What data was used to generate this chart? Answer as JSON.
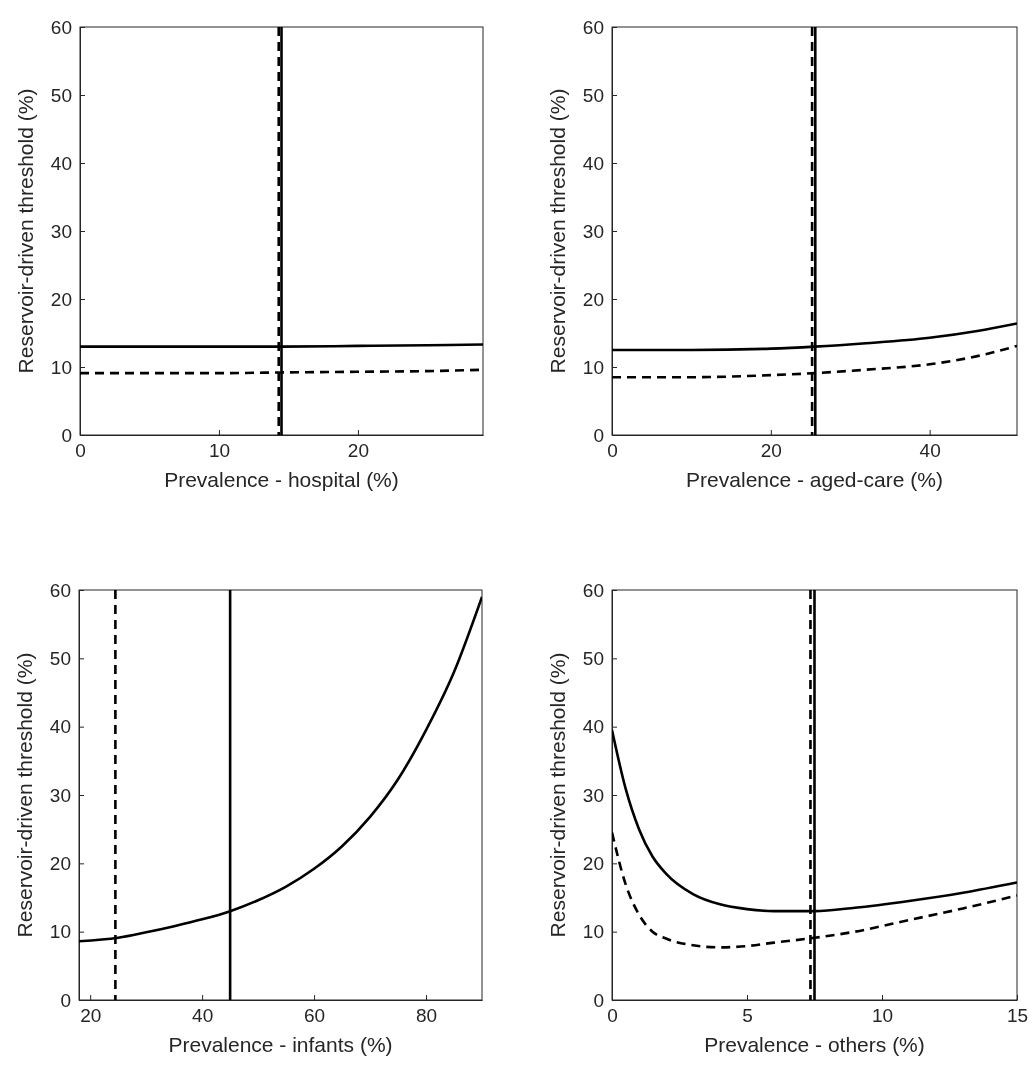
{
  "chart_data": [
    {
      "type": "line",
      "xlabel": "Prevalence - hospital (%)",
      "ylabel": "Reservoir-driven threshold (%)",
      "xlim": [
        0,
        29
      ],
      "xticks": [
        0,
        10,
        20
      ],
      "ylim": [
        0,
        60
      ],
      "yticks": [
        0,
        10,
        20,
        30,
        40,
        50,
        60
      ],
      "series": [
        {
          "color": "#000000",
          "line_style": "solid",
          "x": [
            0,
            5,
            10,
            14.5,
            20,
            25,
            29
          ],
          "values": [
            13.0,
            13.0,
            13.0,
            13.0,
            13.1,
            13.2,
            13.3
          ]
        },
        {
          "color": "#000000",
          "line_style": "dashed",
          "x": [
            0,
            5,
            10,
            14.5,
            20,
            25,
            29
          ],
          "values": [
            9.1,
            9.1,
            9.1,
            9.2,
            9.3,
            9.4,
            9.6
          ]
        }
      ],
      "ref_lines": [
        {
          "axis": "x",
          "value": 14.3,
          "line_style": "dashed",
          "color": "#000000"
        },
        {
          "axis": "x",
          "value": 14.5,
          "line_style": "solid",
          "color": "#000000"
        }
      ]
    },
    {
      "type": "line",
      "xlabel": "Prevalence - aged-care (%)",
      "ylabel": "Reservoir-driven threshold (%)",
      "xlim": [
        0,
        51
      ],
      "xticks": [
        0,
        20,
        40
      ],
      "ylim": [
        0,
        60
      ],
      "yticks": [
        0,
        10,
        20,
        30,
        40,
        50,
        60
      ],
      "series": [
        {
          "color": "#000000",
          "line_style": "solid",
          "x": [
            0,
            10,
            20,
            25.5,
            32,
            40,
            46,
            51
          ],
          "values": [
            12.5,
            12.5,
            12.7,
            13.0,
            13.5,
            14.3,
            15.3,
            16.4
          ]
        },
        {
          "color": "#000000",
          "line_style": "dashed",
          "x": [
            0,
            10,
            20,
            25.5,
            32,
            40,
            46,
            51
          ],
          "values": [
            8.5,
            8.5,
            8.8,
            9.1,
            9.6,
            10.4,
            11.6,
            13.1
          ]
        }
      ],
      "ref_lines": [
        {
          "axis": "x",
          "value": 25.2,
          "line_style": "dashed",
          "color": "#000000"
        },
        {
          "axis": "x",
          "value": 25.6,
          "line_style": "solid",
          "color": "#000000"
        }
      ]
    },
    {
      "type": "line",
      "xlabel": "Prevalence - infants (%)",
      "ylabel": "Reservoir-driven threshold (%)",
      "xlim": [
        18,
        90
      ],
      "xticks": [
        20,
        40,
        60,
        80
      ],
      "ylim": [
        0,
        60
      ],
      "yticks": [
        0,
        10,
        20,
        30,
        40,
        50,
        60
      ],
      "series": [
        {
          "color": "#000000",
          "line_style": "solid",
          "x": [
            18,
            25,
            30,
            35,
            40,
            45,
            50,
            55,
            60,
            65,
            70,
            75,
            80,
            85,
            90
          ],
          "values": [
            8.6,
            9.1,
            9.9,
            10.8,
            11.8,
            13.0,
            14.6,
            16.6,
            19.2,
            22.5,
            26.8,
            32.3,
            39.5,
            48.0,
            59.0
          ]
        }
      ],
      "ref_lines": [
        {
          "axis": "x",
          "value": 24.5,
          "line_style": "dashed",
          "color": "#000000"
        },
        {
          "axis": "x",
          "value": 45,
          "line_style": "solid",
          "color": "#000000"
        }
      ]
    },
    {
      "type": "line",
      "xlabel": "Prevalence - others (%)",
      "ylabel": "Reservoir-driven threshold (%)",
      "xlim": [
        0,
        15
      ],
      "xticks": [
        0,
        5,
        10,
        15
      ],
      "ylim": [
        0,
        60
      ],
      "yticks": [
        0,
        10,
        20,
        30,
        40,
        50,
        60
      ],
      "series": [
        {
          "color": "#000000",
          "line_style": "solid",
          "x": [
            0,
            0.5,
            1,
            1.5,
            2,
            3,
            4,
            5,
            6,
            7,
            7.5,
            9,
            11,
            13,
            15
          ],
          "values": [
            39.5,
            31,
            25,
            21,
            18.5,
            15.5,
            14,
            13.3,
            13,
            13,
            13,
            13.5,
            14.5,
            15.7,
            17.2
          ]
        },
        {
          "color": "#000000",
          "line_style": "dashed",
          "x": [
            0,
            0.5,
            1,
            1.5,
            2,
            3,
            4,
            5,
            6,
            7.5,
            9,
            11,
            13,
            15
          ],
          "values": [
            24.5,
            17,
            12.5,
            10,
            9,
            8,
            7.7,
            7.9,
            8.4,
            9.1,
            10,
            11.7,
            13.4,
            15.3
          ]
        }
      ],
      "ref_lines": [
        {
          "axis": "x",
          "value": 7.35,
          "line_style": "dashed",
          "color": "#000000"
        },
        {
          "axis": "x",
          "value": 7.5,
          "line_style": "solid",
          "color": "#000000"
        }
      ]
    }
  ]
}
